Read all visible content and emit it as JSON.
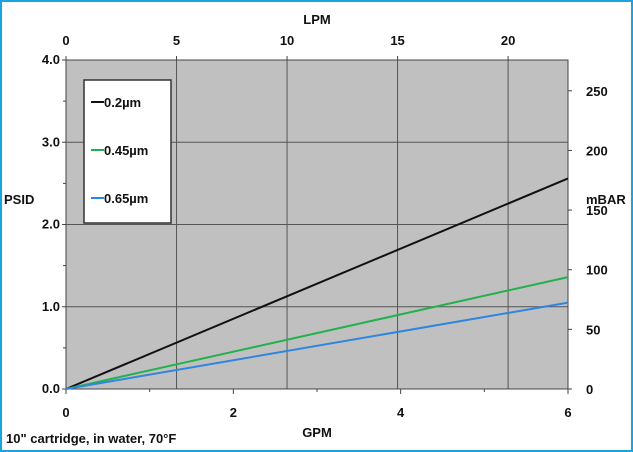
{
  "chart_data": {
    "type": "line",
    "x_bottom": {
      "label": "GPM",
      "range": [
        0,
        6
      ],
      "ticks": [
        "0",
        "2",
        "4",
        "6"
      ]
    },
    "x_top": {
      "label": "LPM",
      "range": [
        0,
        22.71
      ],
      "ticks": [
        "0",
        "5",
        "10",
        "15",
        "20"
      ]
    },
    "y_left": {
      "label": "PSID",
      "range": [
        0,
        4
      ],
      "ticks": [
        "0.0",
        "1.0",
        "2.0",
        "3.0",
        "4.0"
      ]
    },
    "y_right": {
      "label": "mBAR",
      "range": [
        0,
        275.8
      ],
      "ticks": [
        "0",
        "50",
        "100",
        "150",
        "200",
        "250"
      ]
    },
    "grid": true,
    "legend_position": "top-left",
    "series": [
      {
        "name": "0.2µm",
        "color": "#111111",
        "x": [
          0,
          6
        ],
        "y": [
          0,
          2.56
        ]
      },
      {
        "name": "0.45µm",
        "color": "#22b14c",
        "x": [
          0,
          6
        ],
        "y": [
          0,
          1.36
        ]
      },
      {
        "name": "0.65µm",
        "color": "#2e86de",
        "x": [
          0,
          6
        ],
        "y": [
          0,
          1.05
        ]
      }
    ],
    "plot_background": "#c0c0c0",
    "footnote": "10\" cartridge, in water, 70°F"
  }
}
